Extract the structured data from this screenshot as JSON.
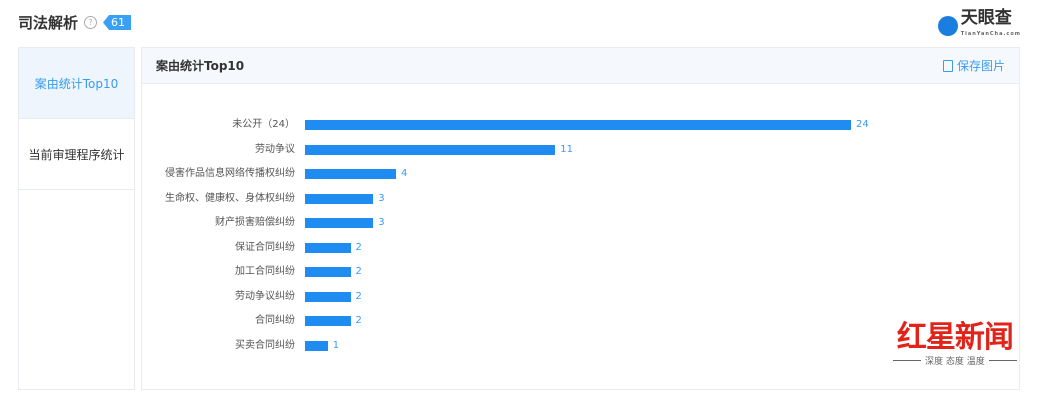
{
  "header": {
    "title": "司法解析",
    "help_icon": "question-circle-icon",
    "count": "61",
    "brand": "天眼查",
    "brand_sub": "TianYanCha.com"
  },
  "nav": {
    "items": [
      {
        "label": "案由统计Top10",
        "active": true
      },
      {
        "label": "当前审理程序统计",
        "active": false
      }
    ]
  },
  "panel": {
    "title": "案由统计Top10",
    "save_label": "保存图片",
    "save_icon": "download-image-icon"
  },
  "colors": {
    "bar": "#1e8cf0",
    "accent": "#3a9cf0",
    "watermark": "#e2231a"
  },
  "chart_data": {
    "type": "bar",
    "orientation": "horizontal",
    "categories": [
      "未公开（24）",
      "劳动争议",
      "侵害作品信息网络传播权纠纷",
      "生命权、健康权、身体权纠纷",
      "财产损害赔偿纠纷",
      "保证合同纠纷",
      "加工合同纠纷",
      "劳动争议纠纷",
      "合同纠纷",
      "买卖合同纠纷"
    ],
    "values": [
      24,
      11,
      4,
      3,
      3,
      2,
      2,
      2,
      2,
      1
    ],
    "xlim": [
      0,
      24
    ],
    "grid": false,
    "data_labels": true
  },
  "watermark": {
    "main": "红星新闻",
    "sub": "深度 态度 温度"
  }
}
